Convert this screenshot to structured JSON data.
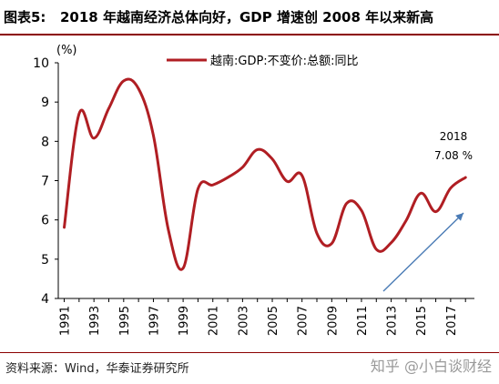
{
  "figure": {
    "label": "图表5:",
    "title": "2018 年越南经济总体向好，GDP 增速创 2008 年以来新高",
    "source": "资料来源：Wind，华泰证券研究所",
    "watermark": "知乎 @小白谈财经"
  },
  "chart_data": {
    "type": "line",
    "ylabel": "(%)",
    "ylim": [
      4,
      10
    ],
    "yticks": [
      "4",
      "5",
      "6",
      "7",
      "8",
      "9",
      "10"
    ],
    "xlim": [
      1990.6,
      2018.6
    ],
    "xticks": [
      "1991",
      "1993",
      "1995",
      "1997",
      "1999",
      "2001",
      "2003",
      "2005",
      "2007",
      "2009",
      "2011",
      "2013",
      "2015",
      "2017"
    ],
    "grid": false,
    "legend_position": "top",
    "series": [
      {
        "name": "越南:GDP:不变价:总额:同比",
        "color": "#b01e23",
        "x": [
          1991,
          1992,
          1993,
          1994,
          1995,
          1996,
          1997,
          1998,
          1999,
          2000,
          2001,
          2002,
          2003,
          2004,
          2005,
          2006,
          2007,
          2008,
          2009,
          2010,
          2011,
          2012,
          2013,
          2014,
          2015,
          2016,
          2017,
          2018
        ],
        "y": [
          5.81,
          8.7,
          8.08,
          8.84,
          9.54,
          9.34,
          8.15,
          5.76,
          4.77,
          6.79,
          6.89,
          7.08,
          7.34,
          7.79,
          7.55,
          6.98,
          7.13,
          5.66,
          5.4,
          6.42,
          6.24,
          5.25,
          5.42,
          5.98,
          6.68,
          6.21,
          6.81,
          7.08
        ]
      }
    ],
    "annotation": {
      "year_text": "2018",
      "value_text": "7.08 %",
      "arrow_color": "#4a7bb5"
    }
  }
}
